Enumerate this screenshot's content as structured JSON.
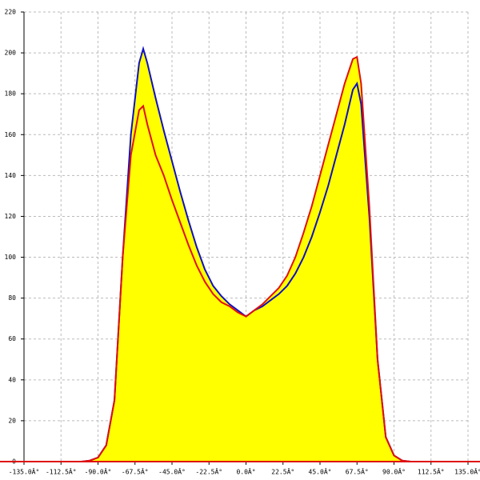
{
  "chart_data": {
    "type": "line",
    "x": [
      -135,
      -100,
      -95,
      -90,
      -85,
      -80,
      -75,
      -70,
      -65,
      -62.5,
      -60,
      -55,
      -50,
      -45,
      -40,
      -35,
      -30,
      -25,
      -20,
      -15,
      -10,
      -5,
      0,
      5,
      10,
      15,
      20,
      25,
      30,
      35,
      40,
      45,
      50,
      55,
      60,
      65,
      67.5,
      70,
      75,
      80,
      85,
      90,
      95,
      100,
      135
    ],
    "series": [
      {
        "color": "#1010c0",
        "values": [
          0,
          0,
          0.5,
          2,
          8,
          30,
          100,
          160,
          195,
          202,
          195,
          178,
          162,
          147,
          132,
          118,
          105,
          94,
          86,
          81,
          77,
          74,
          71,
          74,
          76,
          79,
          82,
          86,
          92,
          100,
          110,
          122,
          135,
          150,
          165,
          182,
          185,
          175,
          120,
          50,
          12,
          3,
          0.5,
          0,
          0
        ]
      },
      {
        "color": "#e01010",
        "values": [
          0,
          0,
          0.5,
          2,
          8,
          30,
          100,
          150,
          172,
          174,
          165,
          150,
          140,
          128,
          117,
          106,
          96,
          88,
          82,
          78,
          76,
          73,
          71,
          74,
          77,
          81,
          85,
          91,
          100,
          112,
          125,
          140,
          155,
          170,
          185,
          197,
          198,
          185,
          125,
          50,
          12,
          3,
          0.5,
          0,
          0
        ]
      }
    ],
    "fill": "#ffff00",
    "xlim": [
      -135,
      135
    ],
    "ylim": [
      0,
      220
    ],
    "xticks": [
      {
        "value": -135,
        "label": "-135.0Â°"
      },
      {
        "value": -112.5,
        "label": "-112.5Â°"
      },
      {
        "value": -90,
        "label": "-90.0Â°"
      },
      {
        "value": -67.5,
        "label": "-67.5Â°"
      },
      {
        "value": -45,
        "label": "-45.0Â°"
      },
      {
        "value": -22.5,
        "label": "-22.5Â°"
      },
      {
        "value": 0,
        "label": "0.0Â°"
      },
      {
        "value": 22.5,
        "label": "22.5Â°"
      },
      {
        "value": 45,
        "label": "45.0Â°"
      },
      {
        "value": 67.5,
        "label": "67.5Â°"
      },
      {
        "value": 90,
        "label": "90.0Â°"
      },
      {
        "value": 112.5,
        "label": "112.5Â°"
      },
      {
        "value": 135,
        "label": "135.0Â°"
      }
    ],
    "yticks": [
      0,
      20,
      40,
      60,
      80,
      100,
      120,
      140,
      160,
      180,
      200,
      220
    ],
    "grid": true
  }
}
